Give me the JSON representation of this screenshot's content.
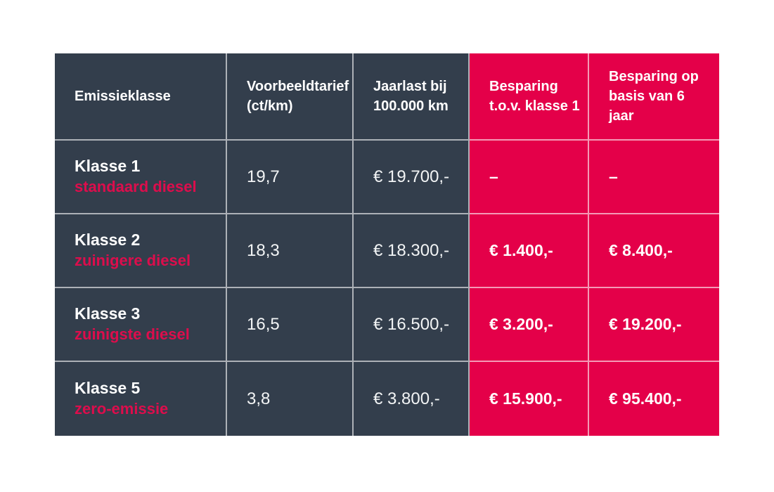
{
  "colors": {
    "dark_cell": "#333e4c",
    "red_cell": "#e40049",
    "red_label": "#dd0d4c"
  },
  "table": {
    "headers": [
      {
        "line1": "Emissieklasse",
        "line2": ""
      },
      {
        "line1": "Voorbeeldtarief",
        "line2": "(ct/km)"
      },
      {
        "line1": "Jaarlast bij",
        "line2": "100.000 km"
      },
      {
        "line1": "Besparing",
        "line2": "t.o.v. klasse 1"
      },
      {
        "line1": "Besparing op",
        "line2": "basis van 6 jaar"
      }
    ],
    "rows": [
      {
        "klasse": "Klasse 1",
        "sub": "standaard diesel",
        "tarief": "19,7",
        "jaarlast": "€ 19.700,-",
        "besparing_tov_klasse1": "–",
        "besparing_6jaar": "–"
      },
      {
        "klasse": "Klasse 2",
        "sub": "zuinigere diesel",
        "tarief": "18,3",
        "jaarlast": "€ 18.300,-",
        "besparing_tov_klasse1": "€ 1.400,-",
        "besparing_6jaar": "€ 8.400,-"
      },
      {
        "klasse": "Klasse 3",
        "sub": "zuinigste diesel",
        "tarief": "16,5",
        "jaarlast": "€ 16.500,-",
        "besparing_tov_klasse1": "€ 3.200,-",
        "besparing_6jaar": "€ 19.200,-"
      },
      {
        "klasse": "Klasse 5",
        "sub": "zero-emissie",
        "tarief": "3,8",
        "jaarlast": "€ 3.800,-",
        "besparing_tov_klasse1": "€ 15.900,-",
        "besparing_6jaar": "€ 95.400,-"
      }
    ]
  },
  "chart_data": {
    "type": "table",
    "title": "",
    "columns": [
      "Emissieklasse",
      "Voorbeeldtarief (ct/km)",
      "Jaarlast bij 100.000 km",
      "Besparing t.o.v. klasse 1",
      "Besparing op basis van 6 jaar"
    ],
    "rows": [
      [
        "Klasse 1 standaard diesel",
        "19,7",
        "€ 19.700,-",
        "–",
        "–"
      ],
      [
        "Klasse 2 zuinigere diesel",
        "18,3",
        "€ 18.300,-",
        "€ 1.400,-",
        "€ 8.400,-"
      ],
      [
        "Klasse 3 zuinigste diesel",
        "16,5",
        "€ 16.500,-",
        "€ 3.200,-",
        "€ 19.200,-"
      ],
      [
        "Klasse 5 zero-emissie",
        "3,8",
        "€ 3.800,-",
        "€ 15.900,-",
        "€ 95.400,-"
      ]
    ],
    "tarief_ct_per_km": [
      19.7,
      18.3,
      16.5,
      3.8
    ],
    "jaarlast_eur": [
      19700,
      18300,
      16500,
      3800
    ],
    "besparing_tov_klasse1_eur": [
      null,
      1400,
      3200,
      15900
    ],
    "besparing_6jaar_eur": [
      null,
      8400,
      19200,
      95400
    ]
  }
}
